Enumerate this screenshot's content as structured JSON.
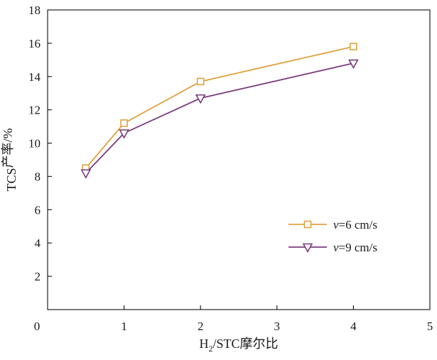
{
  "chart_data": {
    "type": "line",
    "title": "",
    "xlabel": {
      "pre": "H",
      "sub": "2",
      "post": "/STC摩尔比"
    },
    "ylabel": {
      "pre": "TCS",
      "sub": "",
      "post": "产率/%"
    },
    "xlim": [
      0,
      5
    ],
    "ylim": [
      0,
      18
    ],
    "x_ticks": [
      0,
      1,
      2,
      3,
      4,
      5
    ],
    "y_ticks": [
      2,
      4,
      6,
      8,
      10,
      12,
      14,
      16,
      18
    ],
    "y_origin_label": "0",
    "grid": false,
    "legend_position": "center-right",
    "x": [
      0.5,
      1,
      2,
      4
    ],
    "series": [
      {
        "name_var": "v",
        "name_rest": "=6 cm/s",
        "marker": "square",
        "color": "#E0A240",
        "values": [
          8.5,
          11.2,
          13.7,
          15.8
        ]
      },
      {
        "name_var": "v",
        "name_rest": "=9 cm/s",
        "marker": "triangle-down",
        "color": "#7B3C7E",
        "values": [
          8.2,
          10.6,
          12.7,
          14.8
        ]
      }
    ]
  }
}
